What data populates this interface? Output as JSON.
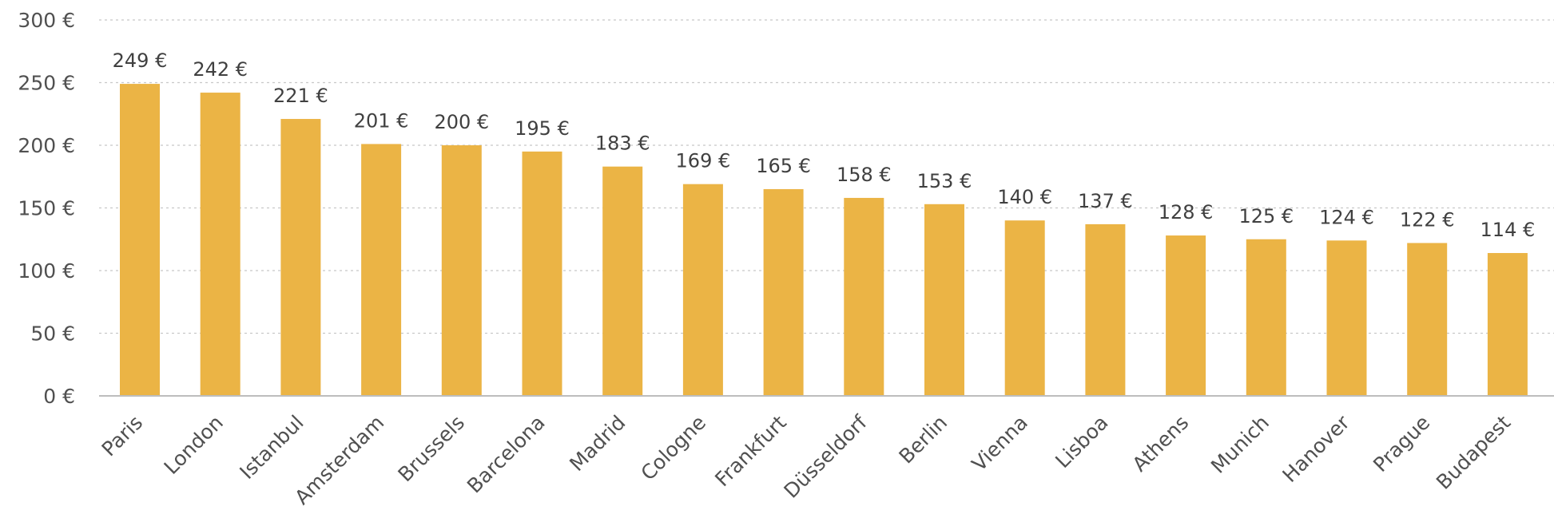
{
  "chart_data": {
    "type": "bar",
    "title": "",
    "xlabel": "",
    "ylabel": "",
    "currency_suffix": " €",
    "ylim": [
      0,
      300
    ],
    "yticks": [
      0,
      50,
      100,
      150,
      200,
      250,
      300
    ],
    "ytick_labels": [
      "0 €",
      "50 €",
      "100 €",
      "150 €",
      "200 €",
      "250 €",
      "300 €"
    ],
    "grid": true,
    "bar_color": "#EBB445",
    "categories": [
      "Paris",
      "London",
      "Istanbul",
      "Amsterdam",
      "Brussels",
      "Barcelona",
      "Madrid",
      "Cologne",
      "Frankfurt",
      "Düsseldorf",
      "Berlin",
      "Vienna",
      "Lisboa",
      "Athens",
      "Munich",
      "Hanover",
      "Prague",
      "Budapest"
    ],
    "values": [
      249,
      242,
      221,
      201,
      200,
      195,
      183,
      169,
      165,
      158,
      153,
      140,
      137,
      128,
      125,
      124,
      122,
      114
    ],
    "value_labels": [
      "249 €",
      "242 €",
      "221 €",
      "201 €",
      "200 €",
      "195 €",
      "183 €",
      "169 €",
      "165 €",
      "158 €",
      "153 €",
      "140 €",
      "137 €",
      "128 €",
      "125 €",
      "124 €",
      "122 €",
      "114 €"
    ]
  }
}
